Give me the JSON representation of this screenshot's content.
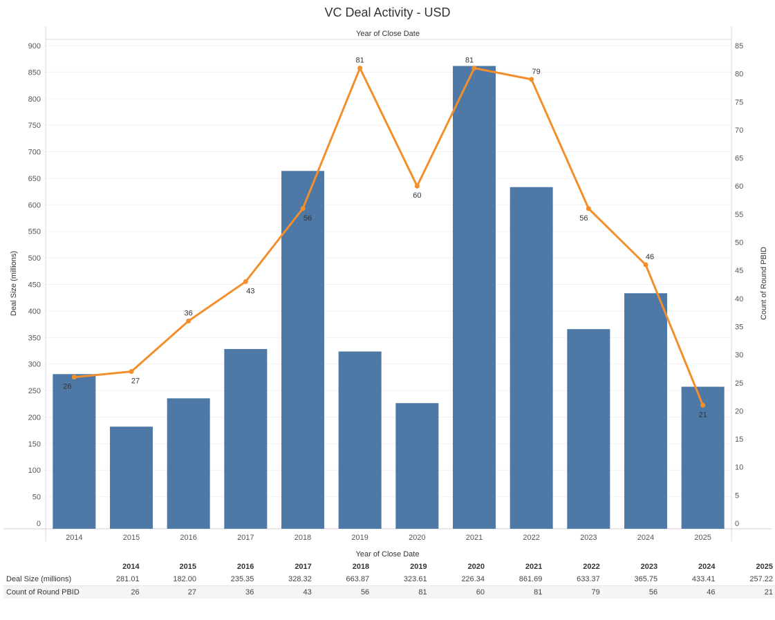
{
  "title": "VC Deal Activity - USD",
  "chart_data": {
    "type": "bar",
    "title": "VC Deal Activity - USD",
    "header_label": "Year of Close Date",
    "xlabel": "Year of Close Date",
    "categories": [
      "2014",
      "2015",
      "2016",
      "2017",
      "2018",
      "2019",
      "2020",
      "2021",
      "2022",
      "2023",
      "2024",
      "2025"
    ],
    "series": [
      {
        "name": "Deal Size (millions)",
        "type": "bar",
        "axis": "left",
        "color": "#4e79a7",
        "values": [
          281.01,
          182.0,
          235.35,
          328.32,
          663.87,
          323.61,
          226.34,
          861.69,
          633.37,
          365.75,
          433.41,
          257.22
        ],
        "display": [
          "281.01",
          "182.00",
          "235.35",
          "328.32",
          "663.87",
          "323.61",
          "226.34",
          "861.69",
          "633.37",
          "365.75",
          "433.41",
          "257.22"
        ]
      },
      {
        "name": "Count of Round PBID",
        "type": "line",
        "axis": "right",
        "color": "#f28e2b",
        "values": [
          26,
          27,
          36,
          43,
          56,
          81,
          60,
          81,
          79,
          56,
          46,
          21
        ],
        "display": [
          "26",
          "27",
          "36",
          "43",
          "56",
          "81",
          "60",
          "81",
          "79",
          "56",
          "46",
          "21"
        ]
      }
    ],
    "ylabel": "Deal Size (millions)",
    "ylim": [
      0,
      900
    ],
    "y_ticks": [
      0,
      50,
      100,
      150,
      200,
      250,
      300,
      350,
      400,
      450,
      500,
      550,
      600,
      650,
      700,
      750,
      800,
      850,
      900
    ],
    "y2label": "Count of Round PBID",
    "y2lim": [
      0,
      85
    ],
    "y2_ticks": [
      0,
      5,
      10,
      15,
      20,
      25,
      30,
      35,
      40,
      45,
      50,
      55,
      60,
      65,
      70,
      75,
      80,
      85
    ],
    "point_labels": [
      "26",
      "27",
      "36",
      "43",
      "56",
      "81",
      "60",
      "81",
      "79",
      "56",
      "46",
      "21"
    ],
    "label_positions": [
      "below",
      "below",
      "above",
      "below",
      "below",
      "above",
      "below",
      "above",
      "above",
      "below",
      "above",
      "below"
    ],
    "grid": true,
    "legend": "none"
  }
}
